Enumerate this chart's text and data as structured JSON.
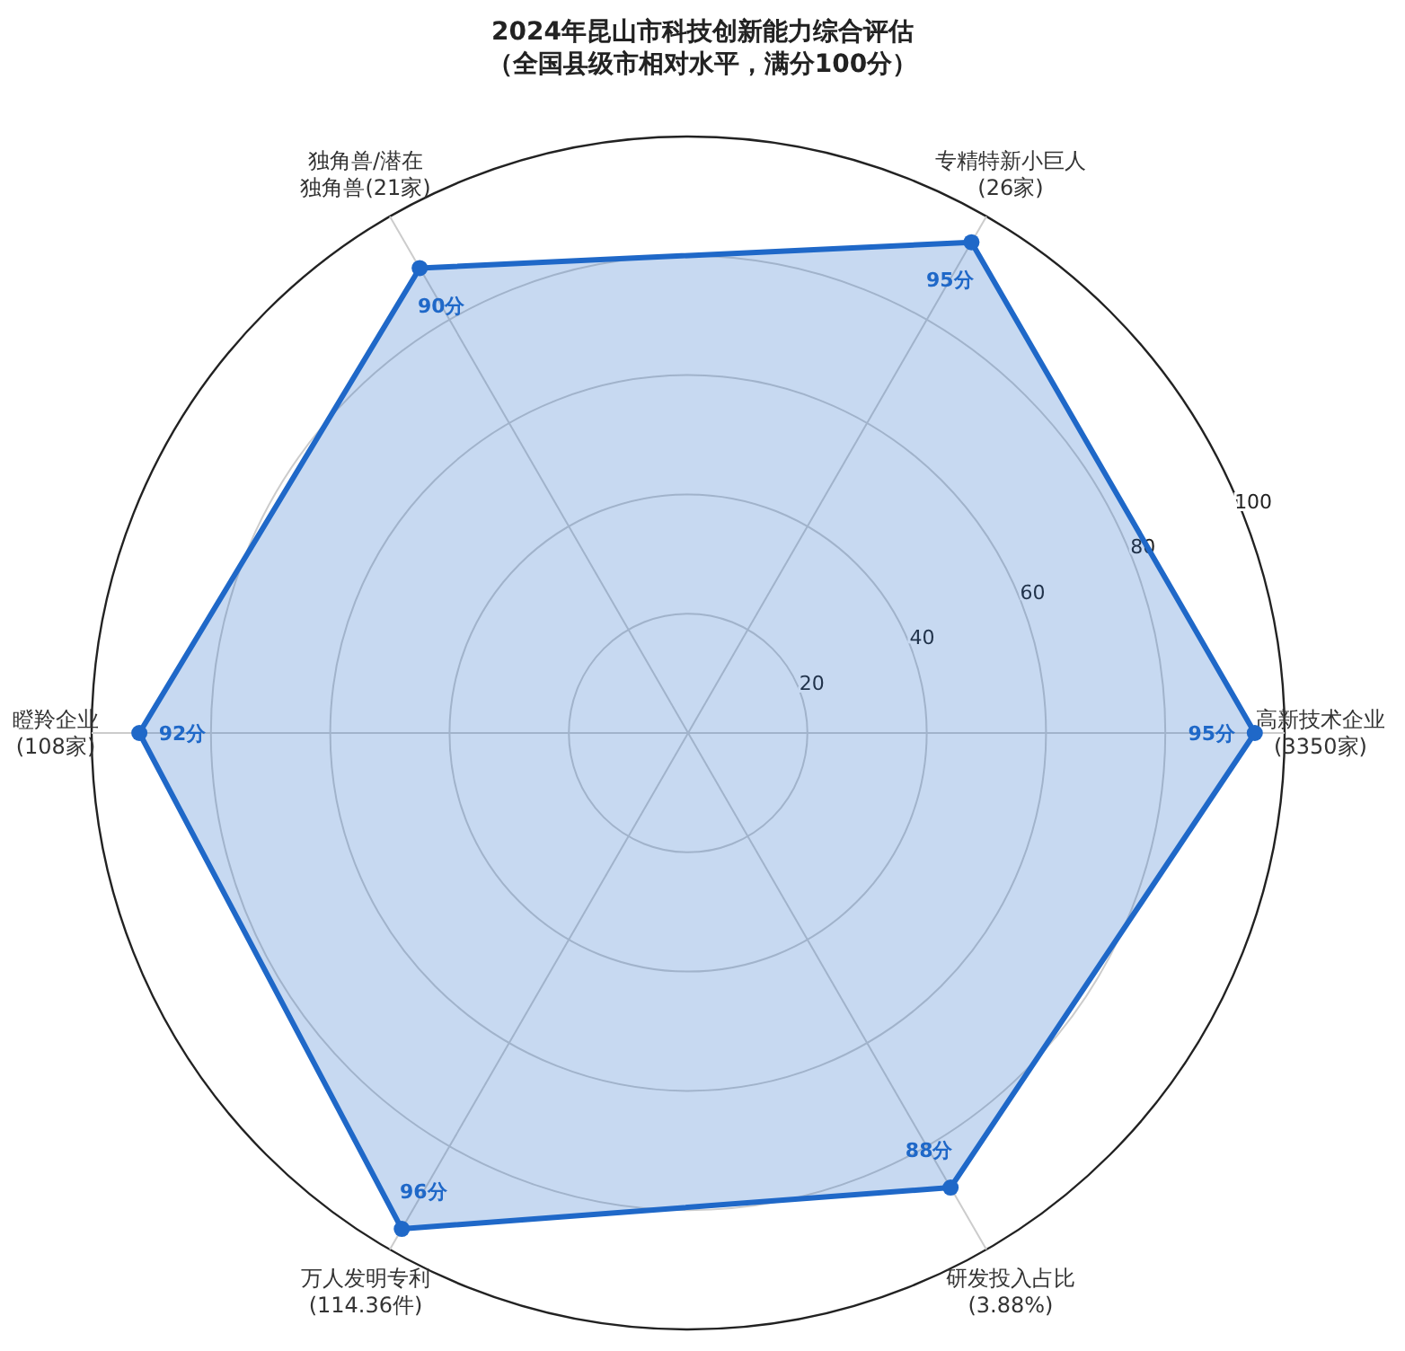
{
  "chart_data": {
    "type": "radar",
    "title": "2024年昆山市科技创新能力综合评估",
    "subtitle": "（全国县级市相对水平，满分100分）",
    "categories": [
      "专精特新小巨人(26家)",
      "高新技术企业(3350家)",
      "研发投入占比(3.88%)",
      "万人发明专利(114.36件)",
      "瞪羚企业(108家)",
      "独角兽/潜在独角兽(21家)"
    ],
    "series": [
      {
        "color": "#1f68c8",
        "values": [
          95,
          95,
          88,
          96,
          92,
          90
        ],
        "value_labels": [
          "95分",
          "95分",
          "88分",
          "96分",
          "92分",
          "90分"
        ]
      }
    ],
    "ylim": [
      0,
      100
    ],
    "yticks": [
      20,
      40,
      60,
      80,
      100
    ],
    "grid": true,
    "marker": "circle"
  }
}
